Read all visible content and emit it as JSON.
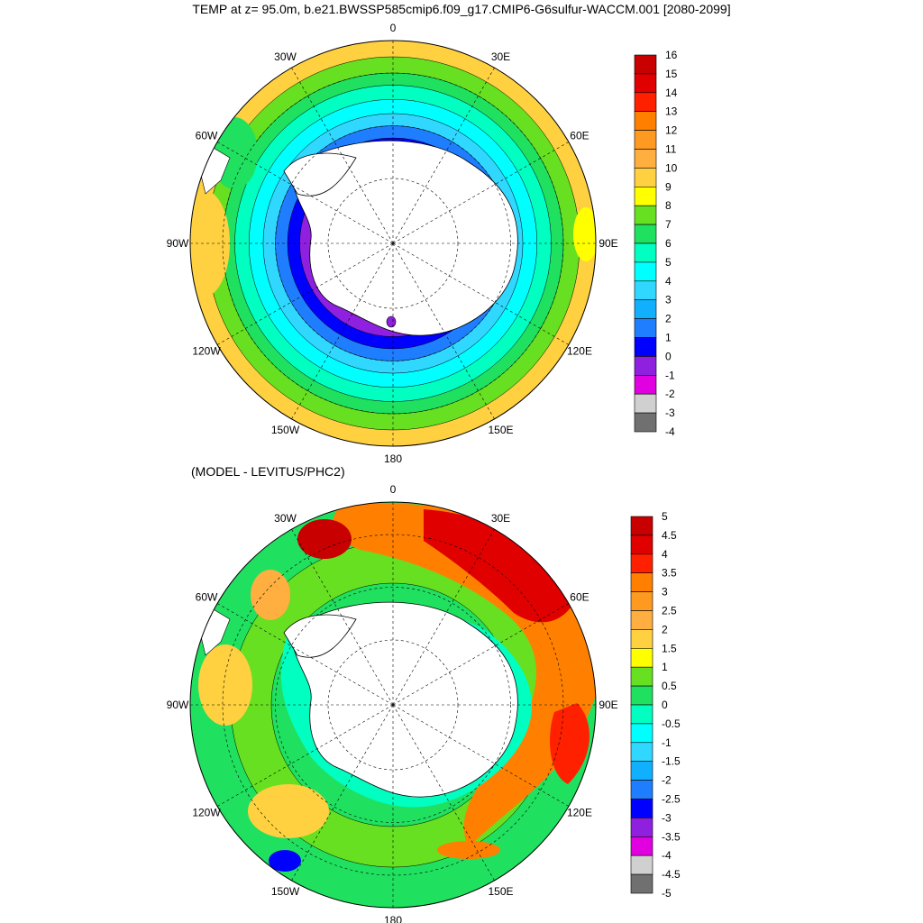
{
  "title": "TEMP at z=  95.0m, b.e21.BWSSP585cmip6.f09_g17.CMIP6-G6sulfur-WACCM.001 [2080-2099]",
  "diff_title": "(MODEL - LEVITUS/PHC2)",
  "longitude_labels": [
    "0",
    "30E",
    "60E",
    "90E",
    "120E",
    "150E",
    "180",
    "150W",
    "120W",
    "90W",
    "60W",
    "30W"
  ],
  "panels": [
    {
      "id": "temperature",
      "colorbar": {
        "labels": [
          "16",
          "15",
          "14",
          "13",
          "12",
          "11",
          "10",
          "9",
          "8",
          "7",
          "6",
          "5",
          "4",
          "3",
          "2",
          "1",
          "0",
          "-1",
          "-2",
          "-3",
          "-4"
        ],
        "colors": [
          "#c80000",
          "#e00000",
          "#ff2000",
          "#ff8000",
          "#ff9a20",
          "#ffae40",
          "#ffd040",
          "#ffff00",
          "#66e020",
          "#20e060",
          "#00ffc0",
          "#00ffff",
          "#30d8ff",
          "#10b0ff",
          "#1e7eff",
          "#0000ff",
          "#9020e0",
          "#e000e0",
          "#d0d0d0",
          "#707070"
        ]
      },
      "rings": [
        {
          "r": 1.0,
          "color": "#ffd040"
        },
        {
          "r": 0.92,
          "color": "#66e020"
        },
        {
          "r": 0.84,
          "color": "#20e060"
        },
        {
          "r": 0.78,
          "color": "#00ffc0"
        },
        {
          "r": 0.71,
          "color": "#00ffff"
        },
        {
          "r": 0.64,
          "color": "#30d8ff"
        },
        {
          "r": 0.58,
          "color": "#1e7eff"
        },
        {
          "r": 0.52,
          "color": "#0000ff"
        },
        {
          "r": 0.46,
          "color": "#9020e0"
        },
        {
          "r": 0.4,
          "color": "#e000e0"
        }
      ]
    },
    {
      "id": "difference",
      "colorbar": {
        "labels": [
          "5",
          "4.5",
          "4",
          "3.5",
          "3",
          "2.5",
          "2",
          "1.5",
          "1",
          "0.5",
          "0",
          "-0.5",
          "-1",
          "-1.5",
          "-2",
          "-2.5",
          "-3",
          "-3.5",
          "-4",
          "-4.5",
          "-5"
        ],
        "colors": [
          "#c80000",
          "#e00000",
          "#ff2000",
          "#ff8000",
          "#ff9a20",
          "#ffae40",
          "#ffd040",
          "#ffff00",
          "#66e020",
          "#20e060",
          "#00ffc0",
          "#00ffff",
          "#30d8ff",
          "#10b0ff",
          "#1e7eff",
          "#0000ff",
          "#9020e0",
          "#e000e0",
          "#d0d0d0",
          "#707070"
        ]
      },
      "rings": [
        {
          "r": 1.0,
          "color": "#20e060"
        },
        {
          "r": 0.8,
          "color": "#66e020"
        },
        {
          "r": 0.6,
          "color": "#20e060"
        },
        {
          "r": 0.45,
          "color": "#00ffc0"
        }
      ]
    }
  ]
}
